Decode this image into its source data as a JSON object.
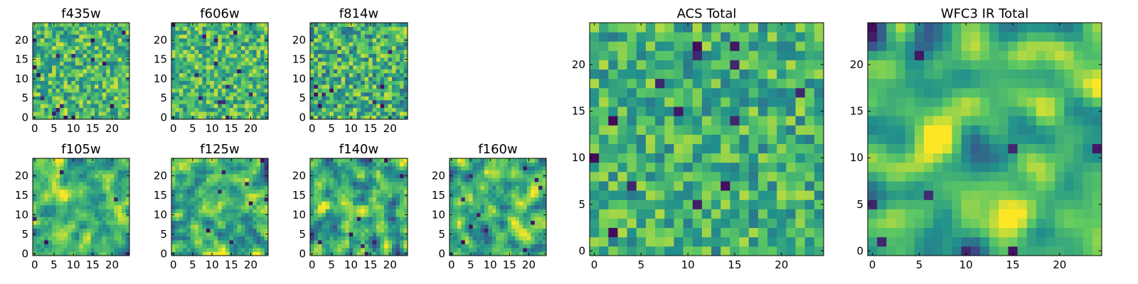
{
  "figure": {
    "colormap": "viridis",
    "colormap_stops": [
      "#440154",
      "#3b528b",
      "#21918c",
      "#5ec962",
      "#fde725"
    ],
    "frame_color": "#000000",
    "background": "#ffffff"
  },
  "chart_data": [
    {
      "type": "heatmap",
      "title": "f435w",
      "grid_size": 25,
      "xlim": [
        0,
        24
      ],
      "ylim": [
        0,
        24
      ],
      "xticks": [
        0,
        5,
        10,
        15,
        20
      ],
      "yticks": [
        0,
        5,
        10,
        15,
        20
      ],
      "character": "noise",
      "smoothness": 0,
      "mean": 0.66,
      "spread": 0.15,
      "seed": 11
    },
    {
      "type": "heatmap",
      "title": "f606w",
      "grid_size": 25,
      "xlim": [
        0,
        24
      ],
      "ylim": [
        0,
        24
      ],
      "xticks": [
        0,
        5,
        10,
        15,
        20
      ],
      "yticks": [
        0,
        5,
        10,
        15,
        20
      ],
      "character": "noise",
      "smoothness": 0,
      "mean": 0.67,
      "spread": 0.15,
      "seed": 23
    },
    {
      "type": "heatmap",
      "title": "f814w",
      "grid_size": 25,
      "xlim": [
        0,
        24
      ],
      "ylim": [
        0,
        24
      ],
      "xticks": [
        0,
        5,
        10,
        15,
        20
      ],
      "yticks": [
        0,
        5,
        10,
        15,
        20
      ],
      "character": "noise",
      "smoothness": 0,
      "mean": 0.64,
      "spread": 0.17,
      "seed": 37
    },
    {
      "type": "heatmap",
      "title": "f105w",
      "grid_size": 25,
      "xlim": [
        0,
        24
      ],
      "ylim": [
        0,
        24
      ],
      "xticks": [
        0,
        5,
        10,
        15,
        20
      ],
      "yticks": [
        0,
        5,
        10,
        15,
        20
      ],
      "character": "smooth",
      "smoothness": 1,
      "mean": 0.66,
      "spread": 0.13,
      "seed": 41
    },
    {
      "type": "heatmap",
      "title": "f125w",
      "grid_size": 25,
      "xlim": [
        0,
        24
      ],
      "ylim": [
        0,
        24
      ],
      "xticks": [
        0,
        5,
        10,
        15,
        20
      ],
      "yticks": [
        0,
        5,
        10,
        15,
        20
      ],
      "character": "smooth",
      "smoothness": 1,
      "mean": 0.63,
      "spread": 0.15,
      "seed": 53
    },
    {
      "type": "heatmap",
      "title": "f140w",
      "grid_size": 25,
      "xlim": [
        0,
        24
      ],
      "ylim": [
        0,
        24
      ],
      "xticks": [
        0,
        5,
        10,
        15,
        20
      ],
      "yticks": [
        0,
        5,
        10,
        15,
        20
      ],
      "character": "smooth",
      "smoothness": 1,
      "mean": 0.62,
      "spread": 0.16,
      "seed": 67
    },
    {
      "type": "heatmap",
      "title": "f160w",
      "grid_size": 25,
      "xlim": [
        0,
        24
      ],
      "ylim": [
        0,
        24
      ],
      "xticks": [
        0,
        5,
        10,
        15,
        20
      ],
      "yticks": [
        0,
        5,
        10,
        15,
        20
      ],
      "character": "smooth",
      "smoothness": 1,
      "mean": 0.64,
      "spread": 0.15,
      "seed": 79
    },
    {
      "type": "heatmap",
      "title": "ACS Total",
      "grid_size": 25,
      "xlim": [
        0,
        24
      ],
      "ylim": [
        0,
        24
      ],
      "xticks": [
        0,
        5,
        10,
        15,
        20
      ],
      "yticks": [
        0,
        5,
        10,
        15,
        20
      ],
      "character": "noise",
      "smoothness": 0,
      "mean": 0.64,
      "spread": 0.14,
      "seed": 97
    },
    {
      "type": "heatmap",
      "title": "WFC3 IR Total",
      "grid_size": 25,
      "xlim": [
        0,
        24
      ],
      "ylim": [
        0,
        24
      ],
      "xticks": [
        0,
        5,
        10,
        15,
        20
      ],
      "yticks": [
        0,
        5,
        10,
        15,
        20
      ],
      "character": "smooth",
      "smoothness": 2,
      "mean": 0.66,
      "spread": 0.15,
      "seed": 103
    }
  ]
}
